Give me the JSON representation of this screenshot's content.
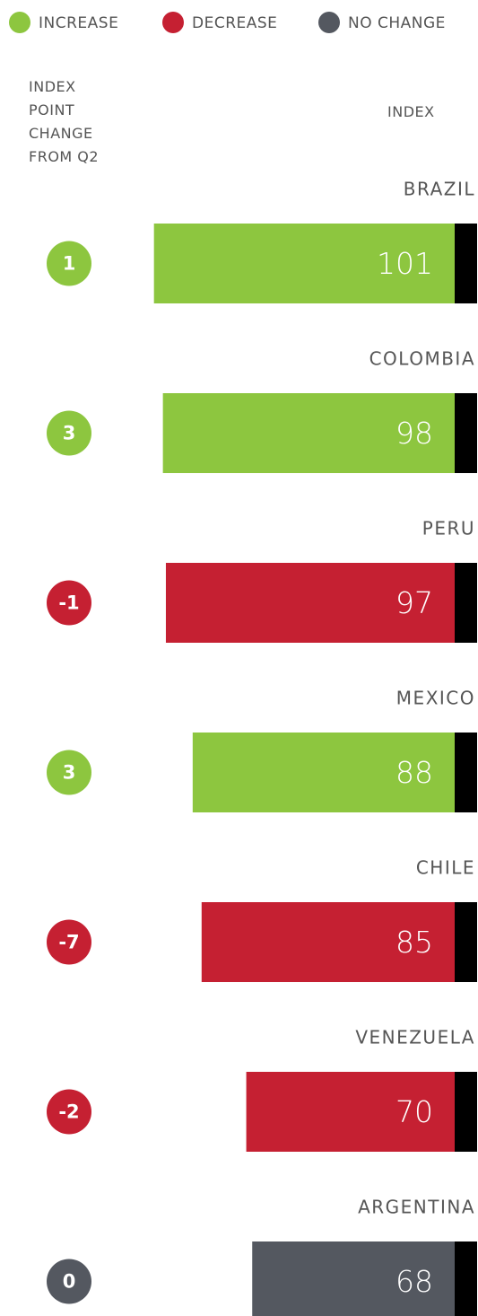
{
  "chart_data": {
    "type": "bar",
    "legend": [
      {
        "name": "INCREASE",
        "color": "#8dc63f"
      },
      {
        "name": "DECREASE",
        "color": "#c52032"
      },
      {
        "name": "NO CHANGE",
        "color": "#545860"
      }
    ],
    "change_label": "INDEX POINT CHANGE FROM Q2",
    "value_label": "INDEX",
    "categories": [
      "BRAZIL",
      "COLOMBIA",
      "PERU",
      "MEXICO",
      "CHILE",
      "VENEZUELA",
      "ARGENTINA"
    ],
    "values": [
      101,
      98,
      97,
      88,
      85,
      70,
      68
    ],
    "changes": [
      1,
      3,
      -1,
      3,
      -7,
      -2,
      0
    ],
    "cap_color": "#000000"
  }
}
